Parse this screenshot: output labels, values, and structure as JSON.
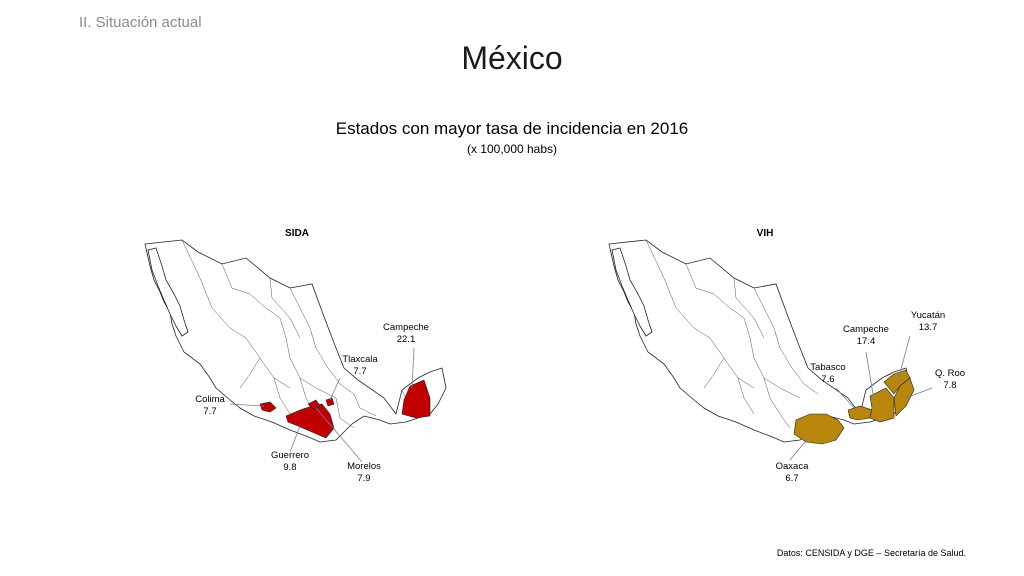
{
  "header": {
    "section": "II. Situación actual",
    "title": "México",
    "subtitle": "Estados con mayor tasa de incidencia en 2016",
    "units": "(x 100,000 habs)"
  },
  "maps": {
    "sida": {
      "title": "SIDA",
      "fill_color": "#c00000",
      "highlighted_states": [
        {
          "name": "Campeche",
          "value": "22.1"
        },
        {
          "name": "Tlaxcala",
          "value": "7.7"
        },
        {
          "name": "Colima",
          "value": "7.7"
        },
        {
          "name": "Guerrero",
          "value": "9.8"
        },
        {
          "name": "Morelos",
          "value": "7.9"
        }
      ]
    },
    "vih": {
      "title": "VIH",
      "fill_color": "#b8860b",
      "highlighted_states": [
        {
          "name": "Yucatán",
          "value": "13.7"
        },
        {
          "name": "Campeche",
          "value": "17.4"
        },
        {
          "name": "Tabasco",
          "value": "7.6"
        },
        {
          "name": "Q. Roo",
          "value": "7.8"
        },
        {
          "name": "Oaxaca",
          "value": "6.7"
        }
      ]
    }
  },
  "footer": {
    "source": "Datos:   CENSIDA y DGE – Secretaría de Salud."
  }
}
